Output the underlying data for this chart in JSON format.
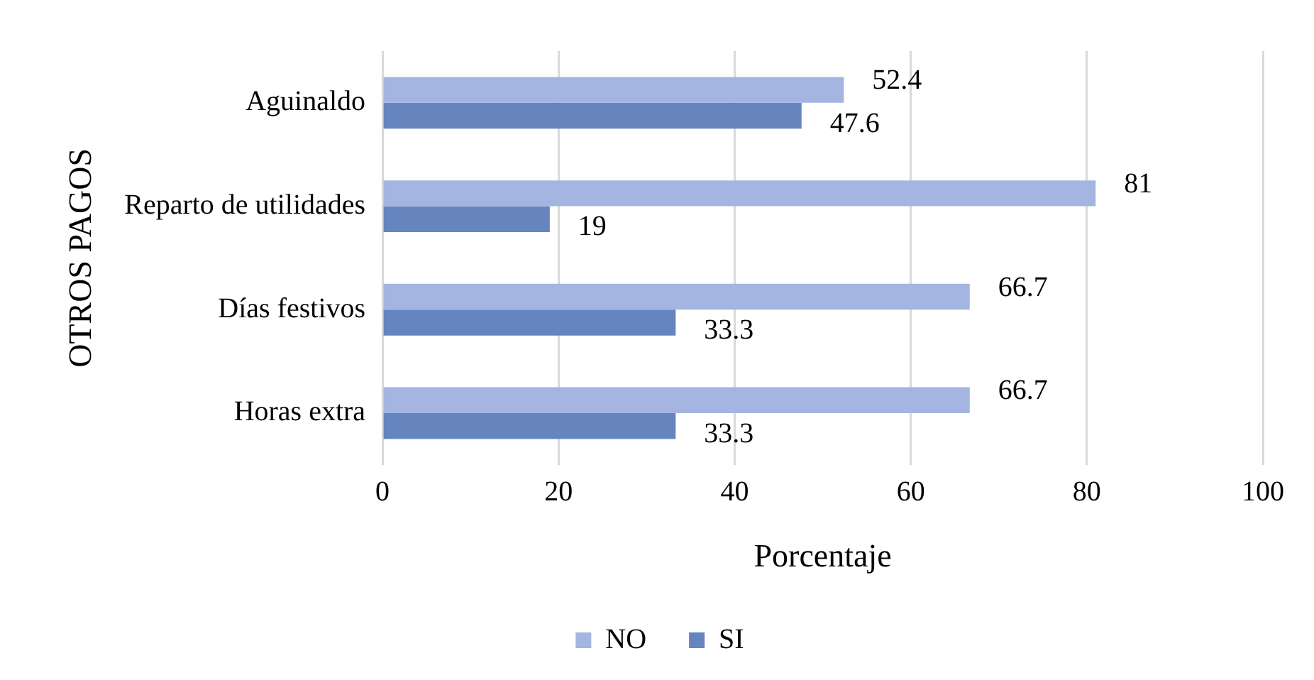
{
  "chart_data": {
    "type": "bar",
    "orientation": "horizontal",
    "xlabel": "Porcentaje",
    "ylabel": "OTROS PAGOS",
    "categories": [
      "Aguinaldo",
      "Reparto de utilidades",
      "Días festivos",
      "Horas extra"
    ],
    "series": [
      {
        "name": "NO",
        "color": "#a3b5e0",
        "values": [
          52.4,
          81,
          66.7,
          66.7
        ]
      },
      {
        "name": "SI",
        "color": "#6685bf",
        "values": [
          47.6,
          19,
          33.3,
          33.3
        ]
      }
    ],
    "xlim": [
      0,
      100
    ],
    "xticks": [
      0,
      20,
      40,
      60,
      80,
      100
    ],
    "grid": "x",
    "legend": "bottom",
    "data_labels": true
  }
}
